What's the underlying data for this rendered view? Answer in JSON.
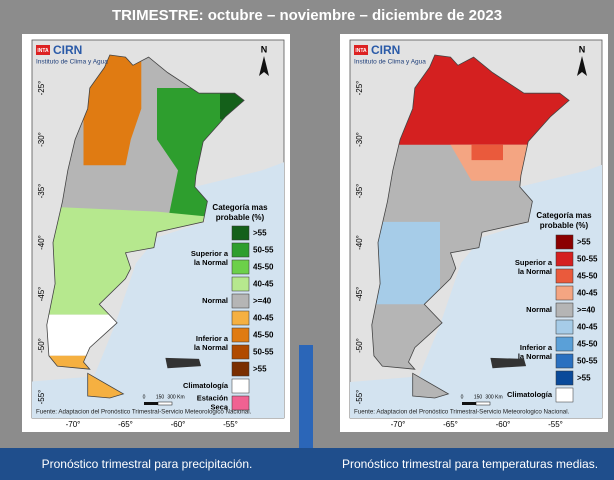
{
  "title": "TRIMESTRE: octubre – noviembre – diciembre de 2023",
  "panels": [
    {
      "badge": "INTA",
      "brand": "CIRN",
      "institute": "Instituto de Clima y Agua",
      "north": "N",
      "lat_labels": [
        "-25°",
        "-30°",
        "-35°",
        "-40°",
        "-45°",
        "-50°",
        "-55°"
      ],
      "lon_labels": [
        "-70°",
        "-65°",
        "-60°",
        "-55°"
      ],
      "scale": [
        "0",
        "150",
        "300 Km"
      ],
      "source": "Fuente: Adaptacion del Pronóstico Trimestral-Servicio Meteorologico Nacional.",
      "legend": {
        "title_lines": [
          "Categoría mas",
          "probable (%)"
        ],
        "groups": [
          {
            "label_lines": [
              "Superior a",
              "la Normal"
            ],
            "items": [
              {
                "label": ">55",
                "color": "#14601a"
              },
              {
                "label": "50-55",
                "color": "#2e9e2e"
              },
              {
                "label": "45-50",
                "color": "#6cd04a"
              },
              {
                "label": "40-45",
                "color": "#b6e88e"
              }
            ]
          },
          {
            "label_lines": [
              "Normal"
            ],
            "items": [
              {
                "label": ">=40",
                "color": "#b5b5b5"
              }
            ]
          },
          {
            "label_lines": [
              "Inferior a",
              "la Normal"
            ],
            "items": [
              {
                "label": "40-45",
                "color": "#f5b041"
              },
              {
                "label": "45-50",
                "color": "#e07b12"
              },
              {
                "label": "50-55",
                "color": "#b04a00"
              },
              {
                "label": ">55",
                "color": "#7a2e00"
              }
            ]
          },
          {
            "label_lines": [
              "Climatología"
            ],
            "items": [
              {
                "color": "#ffffff"
              }
            ]
          },
          {
            "label_lines": [
              "Estación",
              "Seca"
            ],
            "items": [
              {
                "color": "#f06292"
              }
            ]
          }
        ]
      },
      "caption": "Pronóstico trimestral para precipitación."
    },
    {
      "badge": "INTA",
      "brand": "CIRN",
      "institute": "Instituto de Clima y Agua",
      "north": "N",
      "lat_labels": [
        "-25°",
        "-30°",
        "-35°",
        "-40°",
        "-45°",
        "-50°",
        "-55°"
      ],
      "lon_labels": [
        "-70°",
        "-65°",
        "-60°",
        "-55°"
      ],
      "scale": [
        "0",
        "150",
        "300 Km"
      ],
      "source": "Fuente: Adaptacion del Pronóstico Trimestral-Servicio Meteorologico Nacional.",
      "legend": {
        "title_lines": [
          "Categoría mas",
          "probable (%)"
        ],
        "groups": [
          {
            "label_lines": [
              "Superior a",
              "la Normal"
            ],
            "items": [
              {
                "label": ">55",
                "color": "#8b0000"
              },
              {
                "label": "50-55",
                "color": "#d42020"
              },
              {
                "label": "45-50",
                "color": "#ea5a3c"
              },
              {
                "label": "40-45",
                "color": "#f4a582"
              }
            ]
          },
          {
            "label_lines": [
              "Normal"
            ],
            "items": [
              {
                "label": ">=40",
                "color": "#b5b5b5"
              }
            ]
          },
          {
            "label_lines": [
              "Inferior a",
              "la Normal"
            ],
            "items": [
              {
                "label": "40-45",
                "color": "#a6cce8"
              },
              {
                "label": "45-50",
                "color": "#5aa0d8"
              },
              {
                "label": "50-55",
                "color": "#2a70c0"
              },
              {
                "label": ">55",
                "color": "#0a4a9a"
              }
            ]
          },
          {
            "label_lines": [
              "Climatología"
            ],
            "items": [
              {
                "color": "#ffffff"
              }
            ]
          }
        ]
      },
      "caption": "Pronóstico trimestral para temperaturas medias."
    }
  ]
}
